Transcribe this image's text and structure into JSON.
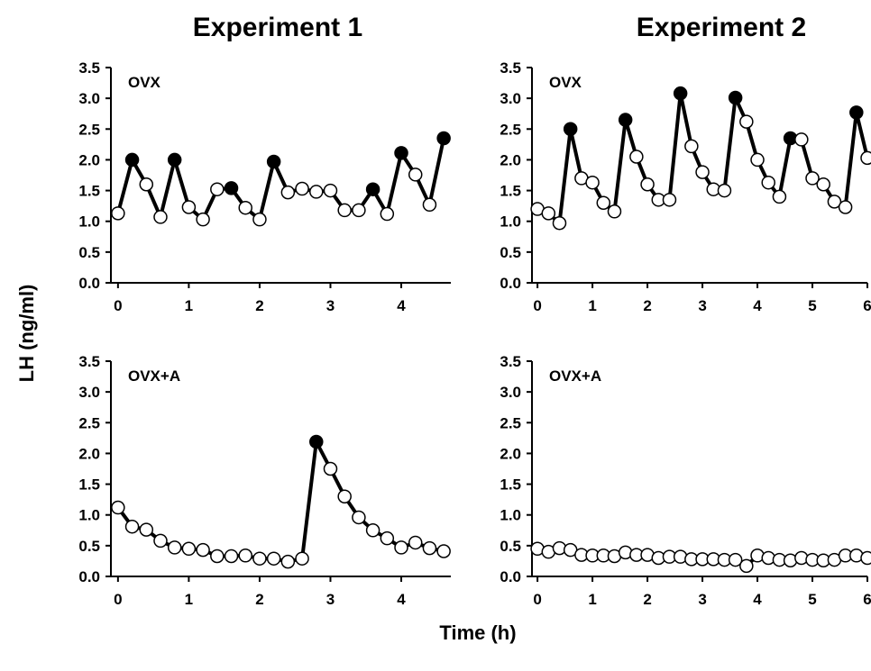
{
  "figure": {
    "ylabel": "LH (ng/ml)",
    "xlabel": "Time (h)",
    "columns": [
      "Experiment 1",
      "Experiment 2"
    ]
  },
  "chart_data": [
    {
      "type": "line",
      "column": "Experiment 1",
      "panel_label": "OVX",
      "xticks": [
        0,
        1,
        2,
        3,
        4
      ],
      "xlim": [
        -0.1,
        4.7
      ],
      "yticks": [
        "0.0",
        "0.5",
        "1.0",
        "1.5",
        "2.0",
        "2.5",
        "3.0",
        "3.5"
      ],
      "ylim": [
        0,
        3.5
      ],
      "x": [
        0,
        0.2,
        0.4,
        0.6,
        0.8,
        1.0,
        1.2,
        1.4,
        1.6,
        1.8,
        2.0,
        2.2,
        2.4,
        2.6,
        2.8,
        3.0,
        3.2,
        3.4,
        3.6,
        3.8,
        4.0,
        4.2,
        4.4,
        4.6
      ],
      "y": [
        1.13,
        2.0,
        1.6,
        1.07,
        2.0,
        1.23,
        1.03,
        1.52,
        1.54,
        1.22,
        1.03,
        1.97,
        1.47,
        1.53,
        1.48,
        1.5,
        1.18,
        1.18,
        1.52,
        1.12,
        2.11,
        1.76,
        1.27,
        2.35
      ],
      "pulse": [
        false,
        true,
        false,
        false,
        true,
        false,
        false,
        false,
        true,
        false,
        false,
        true,
        false,
        false,
        false,
        false,
        false,
        false,
        true,
        false,
        true,
        false,
        false,
        true
      ]
    },
    {
      "type": "line",
      "column": "Experiment 2",
      "panel_label": "OVX",
      "xticks": [
        0,
        1,
        2,
        3,
        4,
        5,
        6
      ],
      "xlim": [
        -0.1,
        6.0
      ],
      "yticks": [
        "0.0",
        "0.5",
        "1.0",
        "1.5",
        "2.0",
        "2.5",
        "3.0",
        "3.5"
      ],
      "ylim": [
        0,
        3.5
      ],
      "x": [
        0,
        0.2,
        0.4,
        0.6,
        0.8,
        1.0,
        1.2,
        1.4,
        1.6,
        1.8,
        2.0,
        2.2,
        2.4,
        2.6,
        2.8,
        3.0,
        3.2,
        3.4,
        3.6,
        3.8,
        4.0,
        4.2,
        4.4,
        4.6,
        4.8,
        5.0,
        5.2,
        5.4,
        5.6,
        5.8,
        6.0
      ],
      "y": [
        1.2,
        1.13,
        0.97,
        2.5,
        1.7,
        1.63,
        1.3,
        1.16,
        2.65,
        2.05,
        1.6,
        1.35,
        1.35,
        3.08,
        2.22,
        1.8,
        1.52,
        1.5,
        3.01,
        2.62,
        2.0,
        1.63,
        1.4,
        2.35,
        2.33,
        1.7,
        1.6,
        1.32,
        1.23,
        2.77,
        2.03
      ],
      "pulse": [
        false,
        false,
        false,
        true,
        false,
        false,
        false,
        false,
        true,
        false,
        false,
        false,
        false,
        true,
        false,
        false,
        false,
        false,
        true,
        false,
        false,
        false,
        false,
        true,
        false,
        false,
        false,
        false,
        false,
        true,
        false
      ]
    },
    {
      "type": "line",
      "column": "Experiment 1",
      "panel_label": "OVX+A",
      "xticks": [
        0,
        1,
        2,
        3,
        4
      ],
      "xlim": [
        -0.1,
        4.7
      ],
      "yticks": [
        "0.0",
        "0.5",
        "1.0",
        "1.5",
        "2.0",
        "2.5",
        "3.0",
        "3.5"
      ],
      "ylim": [
        0,
        3.5
      ],
      "x": [
        0,
        0.2,
        0.4,
        0.6,
        0.8,
        1.0,
        1.2,
        1.4,
        1.6,
        1.8,
        2.0,
        2.2,
        2.4,
        2.6,
        2.8,
        3.0,
        3.2,
        3.4,
        3.6,
        3.8,
        4.0,
        4.2,
        4.4,
        4.6
      ],
      "y": [
        1.12,
        0.81,
        0.76,
        0.58,
        0.47,
        0.45,
        0.43,
        0.33,
        0.33,
        0.34,
        0.29,
        0.29,
        0.24,
        0.29,
        2.19,
        1.75,
        1.3,
        0.96,
        0.75,
        0.62,
        0.47,
        0.55,
        0.46,
        0.41
      ],
      "pulse": [
        false,
        false,
        false,
        false,
        false,
        false,
        false,
        false,
        false,
        false,
        false,
        false,
        false,
        false,
        true,
        false,
        false,
        false,
        false,
        false,
        false,
        false,
        false,
        false
      ]
    },
    {
      "type": "line",
      "column": "Experiment 2",
      "panel_label": "OVX+A",
      "xticks": [
        0,
        1,
        2,
        3,
        4,
        5,
        6
      ],
      "xlim": [
        -0.1,
        6.0
      ],
      "yticks": [
        "0.0",
        "0.5",
        "1.0",
        "1.5",
        "2.0",
        "2.5",
        "3.0",
        "3.5"
      ],
      "ylim": [
        0,
        3.5
      ],
      "x": [
        0,
        0.2,
        0.4,
        0.6,
        0.8,
        1.0,
        1.2,
        1.4,
        1.6,
        1.8,
        2.0,
        2.2,
        2.4,
        2.6,
        2.8,
        3.0,
        3.2,
        3.4,
        3.6,
        3.8,
        4.0,
        4.2,
        4.4,
        4.6,
        4.8,
        5.0,
        5.2,
        5.4,
        5.6,
        5.8,
        6.0
      ],
      "y": [
        0.45,
        0.4,
        0.46,
        0.43,
        0.35,
        0.34,
        0.34,
        0.33,
        0.39,
        0.35,
        0.35,
        0.3,
        0.32,
        0.32,
        0.28,
        0.28,
        0.28,
        0.27,
        0.27,
        0.17,
        0.34,
        0.3,
        0.27,
        0.26,
        0.3,
        0.27,
        0.26,
        0.27,
        0.34,
        0.34,
        0.3
      ],
      "pulse": [
        false,
        false,
        false,
        false,
        false,
        false,
        false,
        false,
        false,
        false,
        false,
        false,
        false,
        false,
        false,
        false,
        false,
        false,
        false,
        false,
        false,
        false,
        false,
        false,
        false,
        false,
        false,
        false,
        false,
        false,
        false
      ]
    }
  ]
}
